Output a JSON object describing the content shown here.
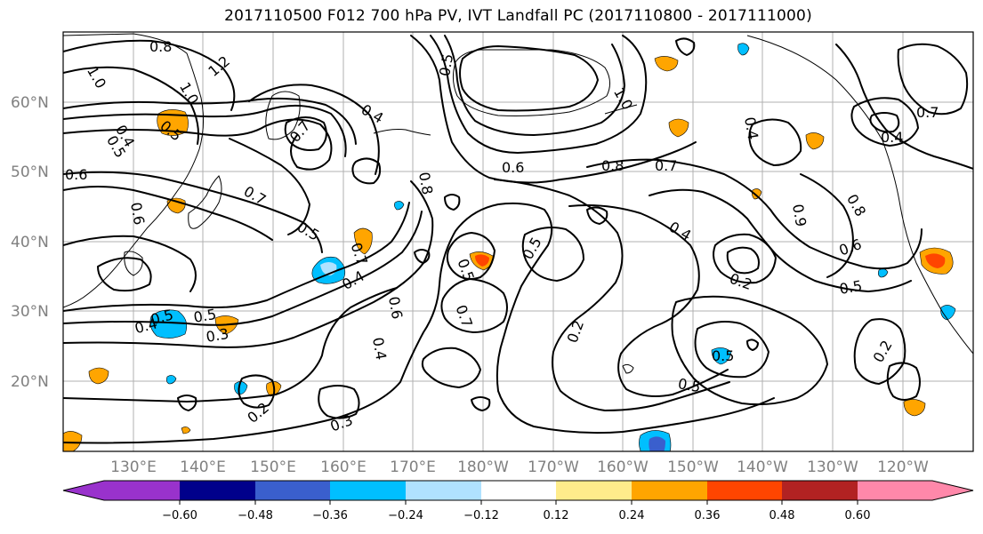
{
  "title": "2017110500 F012 700 hPa PV, IVT Landfall PC (2017110800 - 2017111000)",
  "map": {
    "lon_labels": [
      "130°E",
      "140°E",
      "150°E",
      "160°E",
      "170°E",
      "180°W",
      "170°W",
      "160°W",
      "150°W",
      "140°W",
      "130°W",
      "120°W"
    ],
    "lat_labels": [
      "60°N",
      "50°N",
      "40°N",
      "30°N",
      "20°N"
    ],
    "contour_labels": [
      "0.8",
      "1.0",
      "1.0",
      "1.2",
      "0.5",
      "0.4",
      "0.5",
      "0.6",
      "0.7",
      "0.5",
      "0.6",
      "0.7",
      "0.4",
      "0.5",
      "0.3",
      "0.4",
      "0.5",
      "0.7",
      "0.2",
      "0.8",
      "0.6",
      "0.4",
      "0.7",
      "0.5",
      "0.3",
      "0.6",
      "0.5",
      "0.4",
      "0.5",
      "0.2",
      "0.8",
      "0.4",
      "0.7",
      "0.4",
      "1.0",
      "0.8",
      "0.9",
      "0.6",
      "0.2",
      "0.5",
      "0.7",
      "0.4",
      "0.5",
      "0.2",
      "0.5"
    ]
  },
  "colorbar": {
    "colors": [
      "#9932cc",
      "#00008b",
      "#3a5fcd",
      "#00bfff",
      "#b0e2ff",
      "#ffffff",
      "#ffec8b",
      "#ffa500",
      "#ff4500",
      "#b22222",
      "#ff88aa"
    ],
    "labels": [
      "−0.60",
      "−0.48",
      "−0.36",
      "−0.24",
      "−0.12",
      "0.12",
      "0.24",
      "0.36",
      "0.48",
      "0.60"
    ]
  }
}
